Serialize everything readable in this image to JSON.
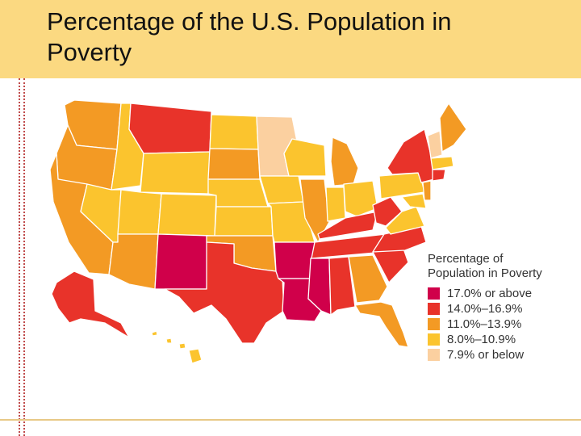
{
  "header": {
    "title_line1": "Percentage of the U.S. Population in",
    "title_line2": "Poverty",
    "background": "#fbd981"
  },
  "legend": {
    "title_line1": "Percentage of",
    "title_line2": "Population in Poverty",
    "items": [
      {
        "label": "17.0% or above",
        "color": "#d0004a"
      },
      {
        "label": "14.0%–16.9%",
        "color": "#e8332a"
      },
      {
        "label": "11.0%–13.9%",
        "color": "#f39a24"
      },
      {
        "label": "8.0%–10.9%",
        "color": "#fbc42e"
      },
      {
        "label": "7.9% or below",
        "color": "#fbd0a0"
      }
    ]
  },
  "map": {
    "regions": {
      "west_coast": "11.0%–13.9%",
      "idaho": "8.0%–10.9%",
      "montana": "14.0%–16.9%",
      "nevada_utah_colorado": "8.0%–10.9%",
      "arizona": "11.0%–13.9%",
      "new_mexico": "17.0% or above",
      "texas": "14.0%–16.9%",
      "oklahoma": "11.0%–13.9%",
      "arkansas": "17.0% or above",
      "louisiana": "17.0% or above",
      "mississippi": "17.0% or above",
      "alabama": "14.0%–16.9%",
      "minnesota": "7.9% or below",
      "new_york": "14.0%–16.9%",
      "alaska": "14.0%–16.9%",
      "hawaii": "8.0%–10.9%"
    }
  }
}
